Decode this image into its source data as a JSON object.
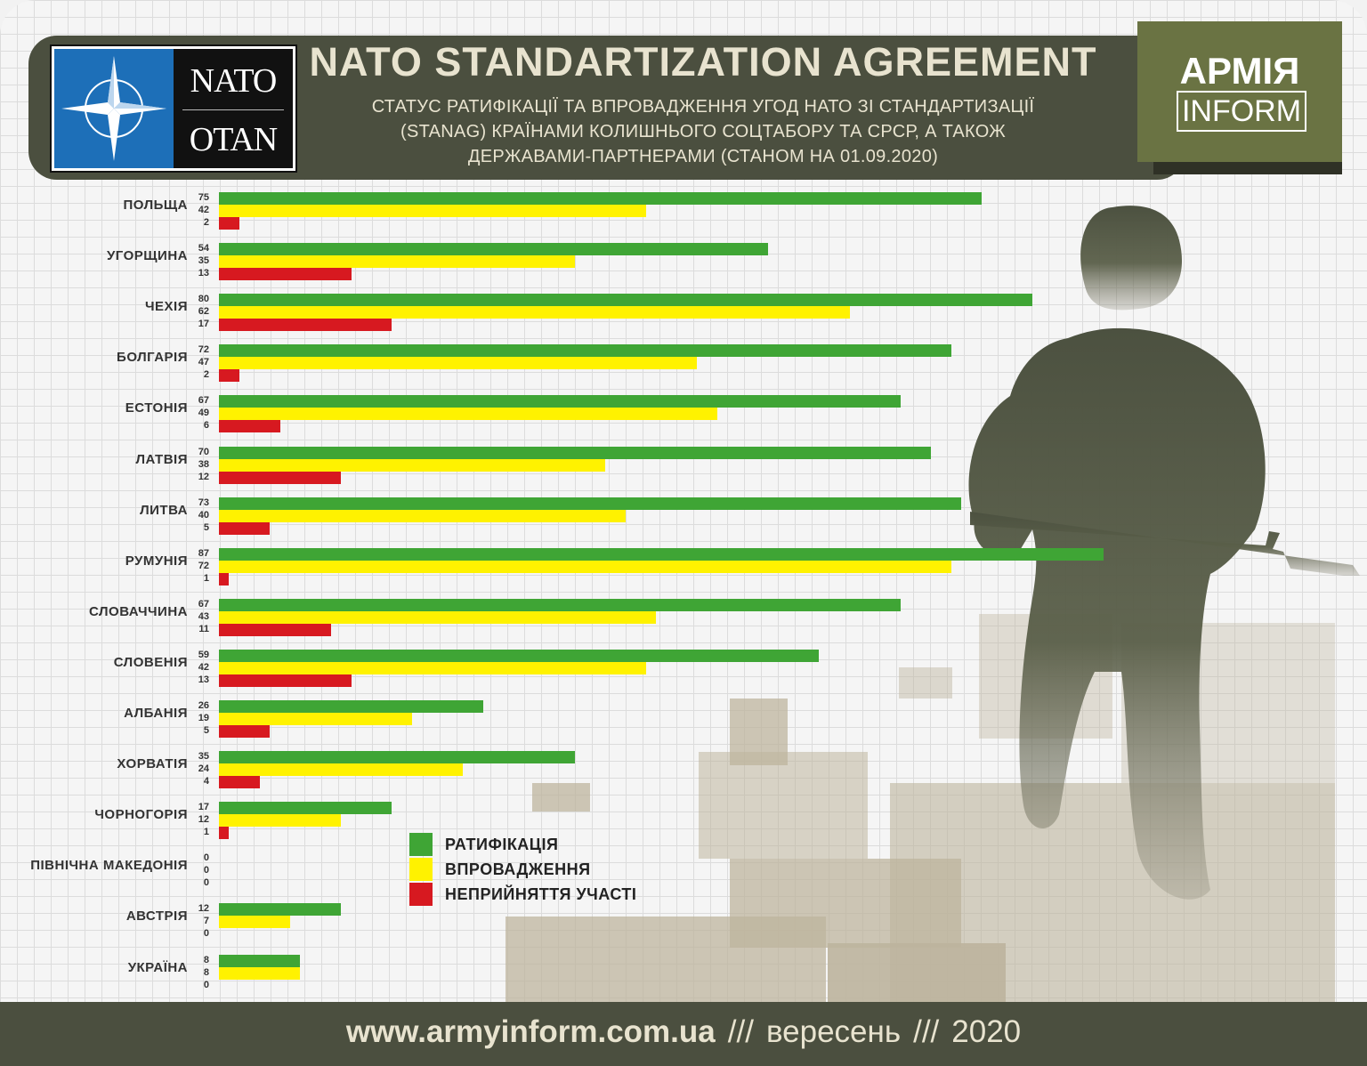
{
  "header": {
    "title": "NATO STANDARTIZATION AGREEMENT",
    "subtitle_lines": [
      "СТАТУС РАТИФІКАЦІЇ ТА ВПРОВАДЖЕННЯ УГОД НАТО ЗІ СТАНДАРТИЗАЦІЇ",
      "(STANAG) КРАЇНАМИ КОЛИШНЬОГО СОЦТАБОРУ ТА СРСР, А ТАКОЖ",
      "ДЕРЖАВАМИ-ПАРТНЕРАМИ (СТАНОМ НА 01.09.2020)"
    ],
    "nato_logo": {
      "top_word": "NATO",
      "bottom_word": "OTAN"
    },
    "brand": {
      "line1": "АРМІЯ",
      "line2": "INFORM"
    }
  },
  "colors": {
    "ratification": "#3fa535",
    "implementation": "#fff200",
    "non_participation": "#d71920",
    "header_bg": "#4b4f3f",
    "brand_bg": "#6a7343"
  },
  "chart_data": {
    "type": "bar",
    "orientation": "horizontal",
    "title": "NATO STANDARTIZATION AGREEMENT",
    "categories": [
      "ПОЛЬЩА",
      "УГОРЩИНА",
      "ЧЕХІЯ",
      "БОЛГАРІЯ",
      "ЕСТОНІЯ",
      "ЛАТВІЯ",
      "ЛИТВА",
      "РУМУНІЯ",
      "СЛОВАЧЧИНА",
      "СЛОВЕНІЯ",
      "АЛБАНІЯ",
      "ХОРВАТІЯ",
      "ЧОРНОГОРІЯ",
      "ПІВНІЧНА МАКЕДОНІЯ",
      "АВСТРІЯ",
      "УКРАЇНА"
    ],
    "series": [
      {
        "name": "РАТИФІКАЦІЯ",
        "key": "ratification",
        "values": [
          75,
          54,
          80,
          72,
          67,
          70,
          73,
          87,
          67,
          59,
          26,
          35,
          17,
          0,
          12,
          8
        ]
      },
      {
        "name": "ВПРОВАДЖЕННЯ",
        "key": "implementation",
        "values": [
          42,
          35,
          62,
          47,
          49,
          38,
          40,
          72,
          43,
          42,
          19,
          24,
          12,
          0,
          7,
          8
        ]
      },
      {
        "name": "НЕПРИЙНЯТТЯ УЧАСТІ",
        "key": "non_participation",
        "values": [
          2,
          13,
          17,
          2,
          6,
          12,
          5,
          1,
          11,
          13,
          5,
          4,
          1,
          0,
          0,
          0
        ]
      }
    ],
    "xlim": [
      0,
      87
    ],
    "legend_position": "bottom-center",
    "grid": false
  },
  "footer": {
    "site": "www.armyinform.com.ua",
    "separator": "///",
    "month": "вересень",
    "year": "2020"
  }
}
